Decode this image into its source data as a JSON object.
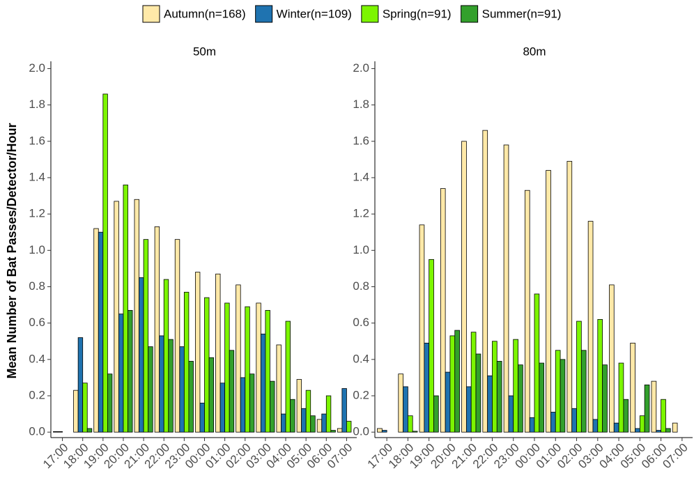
{
  "chart_data": {
    "type": "bar",
    "ylabel": "Mean Number of Bat Passes/Detector/Hour",
    "categories": [
      "17:00",
      "18:00",
      "19:00",
      "20:00",
      "21:00",
      "22:00",
      "23:00",
      "00:00",
      "01:00",
      "02:00",
      "03:00",
      "04:00",
      "05:00",
      "06:00",
      "07:00"
    ],
    "ylim": [
      -0.03,
      2.04
    ],
    "yticks": [
      {
        "value": 0,
        "label": "0.0"
      },
      0.2,
      0.4,
      0.6,
      0.8,
      {
        "value": 1,
        "label": "1.0"
      },
      1.2,
      1.4,
      1.6,
      1.8,
      {
        "value": 2,
        "label": "2.0"
      }
    ],
    "series": [
      {
        "name": "Autumn(n=168)",
        "color": "#ffe9a8"
      },
      {
        "name": "Winter(n=109)",
        "color": "#1f73b0"
      },
      {
        "name": "Spring(n=91)",
        "color": "#7cf500"
      },
      {
        "name": "Summer(n=91)",
        "color": "#33a02c"
      }
    ],
    "panels": [
      {
        "title": "50m",
        "series": [
          {
            "values": [
              0.003,
              0.23,
              1.12,
              1.27,
              1.28,
              1.13,
              1.06,
              0.88,
              0.87,
              0.81,
              0.71,
              0.48,
              0.29,
              0.07,
              0.02
            ]
          },
          {
            "values": [
              0.003,
              0.52,
              1.1,
              0.65,
              0.85,
              0.53,
              0.47,
              0.16,
              0.27,
              0.3,
              0.54,
              0.1,
              0.13,
              0.1,
              0.24
            ]
          },
          {
            "values": [
              0,
              0.27,
              1.86,
              1.36,
              1.06,
              0.84,
              0.77,
              0.74,
              0.71,
              0.69,
              0.67,
              0.61,
              0.23,
              0.2,
              0.06
            ]
          },
          {
            "values": [
              0,
              0.02,
              0.32,
              0.67,
              0.47,
              0.51,
              0.39,
              0.41,
              0.45,
              0.32,
              0.28,
              0.18,
              0.09,
              0.01,
              0
            ]
          }
        ]
      },
      {
        "title": "80m",
        "series": [
          {
            "values": [
              0.02,
              0.32,
              1.14,
              1.34,
              1.6,
              1.66,
              1.58,
              1.33,
              1.44,
              1.49,
              1.16,
              0.81,
              0.49,
              0.28,
              0.05
            ]
          },
          {
            "values": [
              0.01,
              0.25,
              0.49,
              0.33,
              0.25,
              0.31,
              0.2,
              0.08,
              0.11,
              0.13,
              0.07,
              0.05,
              0.02,
              0.01,
              0
            ]
          },
          {
            "values": [
              0,
              0.09,
              0.95,
              0.53,
              0.55,
              0.5,
              0.51,
              0.76,
              0.45,
              0.61,
              0.62,
              0.38,
              0.09,
              0.18,
              0
            ]
          },
          {
            "values": [
              0,
              0.005,
              0.2,
              0.56,
              0.43,
              0.39,
              0.37,
              0.38,
              0.4,
              0.45,
              0.37,
              0.18,
              0.26,
              0.02,
              0
            ]
          }
        ]
      }
    ]
  }
}
